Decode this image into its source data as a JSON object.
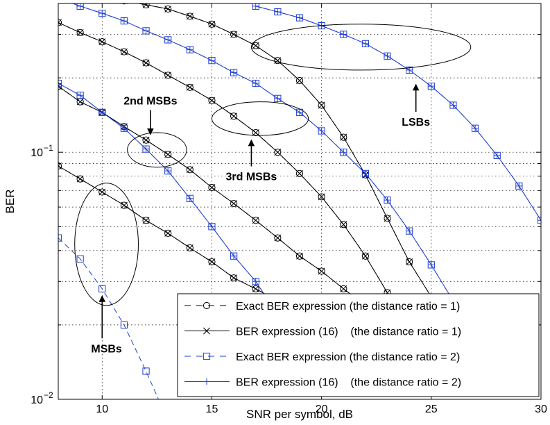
{
  "chart_data": {
    "type": "line",
    "xlabel": "SNR per symbol,  dB",
    "ylabel": "BER",
    "xlim": [
      8,
      30
    ],
    "ylim": [
      0.01,
      0.4
    ],
    "yscale": "log",
    "grid": true,
    "legend_position": "bottom-right",
    "x_ticks": [
      {
        "value": 10,
        "label": "10"
      },
      {
        "value": 15,
        "label": "15"
      },
      {
        "value": 20,
        "label": "20"
      },
      {
        "value": 25,
        "label": "25"
      },
      {
        "value": 30,
        "label": "30"
      }
    ],
    "y_ticks": [
      {
        "value": 0.1,
        "base": "10",
        "exp": "−1"
      },
      {
        "value": 0.01,
        "base": "10",
        "exp": "−2"
      }
    ],
    "series": [
      {
        "name": "Exact BER expression (the distance ratio = 1)",
        "color": "#000000",
        "dash": "dashed",
        "marker": "circle",
        "curves": [
          {
            "group": "MSBs",
            "x": [
              8,
              9,
              10,
              11,
              12,
              13,
              14,
              15,
              16,
              17,
              18
            ],
            "y": [
              0.088,
              0.078,
              0.069,
              0.061,
              0.053,
              0.047,
              0.041,
              0.036,
              0.031,
              0.028,
              0.025
            ]
          },
          {
            "group": "2nd MSBs",
            "x": [
              8,
              9,
              10,
              11,
              12,
              13,
              14,
              15,
              16,
              17,
              18,
              19,
              20,
              21,
              22,
              23,
              24
            ],
            "y": [
              0.185,
              0.16,
              0.145,
              0.127,
              0.112,
              0.098,
              0.085,
              0.072,
              0.062,
              0.053,
              0.045,
              0.038,
              0.033,
              0.028,
              0.024,
              0.0205,
              0.018
            ]
          },
          {
            "group": "3rd MSBs",
            "x": [
              8,
              9,
              10,
              11,
              12,
              13,
              14,
              15,
              16,
              17,
              18,
              19,
              20,
              21,
              22,
              23
            ],
            "y": [
              0.335,
              0.305,
              0.28,
              0.255,
              0.23,
              0.205,
              0.183,
              0.162,
              0.14,
              0.12,
              0.1,
              0.082,
              0.066,
              0.051,
              0.038,
              0.027
            ]
          },
          {
            "group": "LSBs",
            "x": [
              8,
              9,
              10,
              11,
              12,
              13,
              14,
              15,
              16,
              17,
              18,
              19,
              20,
              21,
              22,
              23,
              24,
              25
            ],
            "y": [
              0.46,
              0.44,
              0.42,
              0.41,
              0.395,
              0.38,
              0.355,
              0.33,
              0.3,
              0.27,
              0.235,
              0.195,
              0.155,
              0.115,
              0.081,
              0.054,
              0.036,
              0.026
            ]
          }
        ]
      },
      {
        "name": "BER expression (16)    (the distance ratio = 1)",
        "color": "#000000",
        "dash": "solid",
        "marker": "x",
        "curves": [
          {
            "group": "MSBs",
            "x": [
              8,
              9,
              10,
              11,
              12,
              13,
              14,
              15,
              16,
              17,
              18
            ],
            "y": [
              0.088,
              0.078,
              0.069,
              0.061,
              0.053,
              0.047,
              0.041,
              0.036,
              0.031,
              0.028,
              0.025
            ]
          },
          {
            "group": "2nd MSBs",
            "x": [
              8,
              9,
              10,
              11,
              12,
              13,
              14,
              15,
              16,
              17,
              18,
              19,
              20,
              21,
              22,
              23,
              24
            ],
            "y": [
              0.185,
              0.16,
              0.145,
              0.127,
              0.112,
              0.098,
              0.085,
              0.072,
              0.062,
              0.053,
              0.045,
              0.038,
              0.033,
              0.028,
              0.024,
              0.0205,
              0.018
            ]
          },
          {
            "group": "3rd MSBs",
            "x": [
              8,
              9,
              10,
              11,
              12,
              13,
              14,
              15,
              16,
              17,
              18,
              19,
              20,
              21,
              22,
              23
            ],
            "y": [
              0.335,
              0.305,
              0.28,
              0.255,
              0.23,
              0.205,
              0.183,
              0.162,
              0.14,
              0.12,
              0.1,
              0.082,
              0.066,
              0.051,
              0.038,
              0.027
            ]
          },
          {
            "group": "LSBs",
            "x": [
              8,
              9,
              10,
              11,
              12,
              13,
              14,
              15,
              16,
              17,
              18,
              19,
              20,
              21,
              22,
              23,
              24,
              25
            ],
            "y": [
              0.46,
              0.44,
              0.42,
              0.41,
              0.395,
              0.38,
              0.355,
              0.33,
              0.3,
              0.27,
              0.235,
              0.195,
              0.155,
              0.115,
              0.081,
              0.054,
              0.036,
              0.026
            ]
          }
        ]
      },
      {
        "name": "Exact BER expression (the distance ratio = 2)",
        "color": "#1f3fd0",
        "dash": "dashed",
        "marker": "square",
        "curves": [
          {
            "group": "MSBs",
            "x": [
              8,
              9,
              10,
              11,
              12,
              13
            ],
            "y": [
              0.045,
              0.037,
              0.028,
              0.02,
              0.013,
              0.0082
            ]
          },
          {
            "group": "2nd MSBs",
            "x": [
              8,
              9,
              10,
              11,
              12,
              13,
              14,
              15,
              16,
              17,
              18,
              19
            ],
            "y": [
              0.19,
              0.17,
              0.145,
              0.125,
              0.103,
              0.084,
              0.065,
              0.05,
              0.038,
              0.03,
              0.022,
              0.016
            ]
          },
          {
            "group": "3rd MSBs",
            "x": [
              8,
              9,
              10,
              11,
              12,
              13,
              14,
              15,
              16,
              17,
              18,
              19,
              20,
              21,
              22,
              23,
              24,
              25,
              26
            ],
            "y": [
              0.42,
              0.39,
              0.365,
              0.34,
              0.31,
              0.285,
              0.26,
              0.235,
              0.21,
              0.19,
              0.165,
              0.145,
              0.122,
              0.1,
              0.082,
              0.064,
              0.048,
              0.035,
              0.025
            ]
          },
          {
            "group": "LSBs",
            "x": [
              17,
              18,
              19,
              20,
              21,
              22,
              23,
              24,
              25,
              26,
              27,
              28,
              29,
              30
            ],
            "y": [
              0.39,
              0.37,
              0.35,
              0.325,
              0.3,
              0.275,
              0.245,
              0.215,
              0.185,
              0.155,
              0.125,
              0.097,
              0.073,
              0.053
            ]
          }
        ]
      },
      {
        "name": "BER expression (16)    (the distance ratio = 2)",
        "color": "#1f3fd0",
        "dash": "solid",
        "marker": "plus",
        "curves": [
          {
            "group": "2nd MSBs",
            "x": [
              8,
              9,
              10,
              11,
              12,
              13,
              14,
              15,
              16,
              17,
              18,
              19
            ],
            "y": [
              0.19,
              0.17,
              0.145,
              0.125,
              0.103,
              0.084,
              0.065,
              0.05,
              0.038,
              0.03,
              0.022,
              0.016
            ]
          },
          {
            "group": "3rd MSBs",
            "x": [
              8,
              9,
              10,
              11,
              12,
              13,
              14,
              15,
              16,
              17,
              18,
              19,
              20,
              21,
              22,
              23,
              24,
              25,
              26
            ],
            "y": [
              0.42,
              0.39,
              0.365,
              0.34,
              0.31,
              0.285,
              0.26,
              0.235,
              0.21,
              0.19,
              0.165,
              0.145,
              0.122,
              0.1,
              0.082,
              0.064,
              0.048,
              0.035,
              0.025
            ]
          },
          {
            "group": "LSBs",
            "x": [
              17,
              18,
              19,
              20,
              21,
              22,
              23,
              24,
              25,
              26,
              27,
              28,
              29,
              30
            ],
            "y": [
              0.39,
              0.37,
              0.35,
              0.325,
              0.3,
              0.275,
              0.245,
              0.215,
              0.185,
              0.155,
              0.125,
              0.097,
              0.073,
              0.053
            ]
          }
        ]
      }
    ],
    "annotations": [
      {
        "label": "MSBs",
        "anno_x": 10.2,
        "anno_y": 0.0155,
        "arrow_to": [
          10.0,
          0.0262
        ],
        "ellipse": {
          "cx": 10.2,
          "cy": 0.039,
          "rx_data": 1.45,
          "y_top": 0.075,
          "y_bot": 0.024
        }
      },
      {
        "label": "2nd MSBs",
        "anno_x": 12.2,
        "anno_y": 0.156,
        "arrow_to": [
          12.2,
          0.118
        ],
        "ellipse": {
          "cx": 12.5,
          "cy": 0.102,
          "rx_data": 1.35,
          "y_top": 0.12,
          "y_bot": 0.087
        }
      },
      {
        "label": "3rd MSBs",
        "anno_x": 16.8,
        "anno_y": 0.077,
        "arrow_to": [
          16.8,
          0.112
        ],
        "ellipse": {
          "cx": 17.2,
          "cy": 0.137,
          "rx_data": 2.2,
          "y_top": 0.16,
          "y_bot": 0.117
        }
      },
      {
        "label": "LSBs",
        "anno_x": 24.3,
        "anno_y": 0.128,
        "arrow_to": [
          24.3,
          0.188
        ],
        "ellipse": {
          "cx": 21.8,
          "cy": 0.27,
          "rx_data": 5.0,
          "y_top": 0.33,
          "y_bot": 0.215
        }
      }
    ]
  }
}
